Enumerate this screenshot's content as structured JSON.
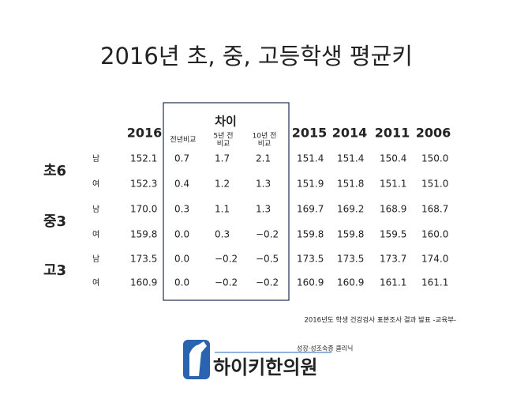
{
  "title": "2016년 초, 중, 고등학생 평균키",
  "table": {
    "first_year": "2016",
    "diff_group": "차이",
    "diff_columns": [
      [
        "전년비교"
      ],
      [
        "5년 전",
        "비교"
      ],
      [
        "10년 전",
        "비교"
      ]
    ],
    "other_years": [
      "2015",
      "2014",
      "2011",
      "2006"
    ],
    "groups": [
      {
        "label": "초6",
        "rows": [
          {
            "gender": "남",
            "cells": [
              "152.1",
              "0.7",
              "1.7",
              "2.1",
              "151.4",
              "151.4",
              "150.4",
              "150.0"
            ]
          },
          {
            "gender": "여",
            "cells": [
              "152.3",
              "0.4",
              "1.2",
              "1.3",
              "151.9",
              "151.8",
              "151.1",
              "151.0"
            ]
          }
        ]
      },
      {
        "label": "중3",
        "rows": [
          {
            "gender": "남",
            "cells": [
              "170.0",
              "0.3",
              "1.1",
              "1.3",
              "169.7",
              "169.2",
              "168.9",
              "168.7"
            ]
          },
          {
            "gender": "여",
            "cells": [
              "159.8",
              "0.0",
              "0.3",
              "−0.2",
              "159.8",
              "159.8",
              "159.5",
              "160.0"
            ]
          }
        ]
      },
      {
        "label": "고3",
        "rows": [
          {
            "gender": "남",
            "cells": [
              "173.5",
              "0.0",
              "−0.2",
              "−0.5",
              "173.5",
              "173.5",
              "173.7",
              "174.0"
            ]
          },
          {
            "gender": "여",
            "cells": [
              "160.9",
              "0.0",
              "−0.2",
              "−0.2",
              "160.9",
              "160.9",
              "161.1",
              "161.1"
            ]
          }
        ]
      }
    ]
  },
  "source": "2016년도 학생 건강검사 표본조사 결과 발표 -교육부-",
  "logo": {
    "tagline": "성장·성조숙증 클리닉",
    "name": "하이키한의원"
  }
}
